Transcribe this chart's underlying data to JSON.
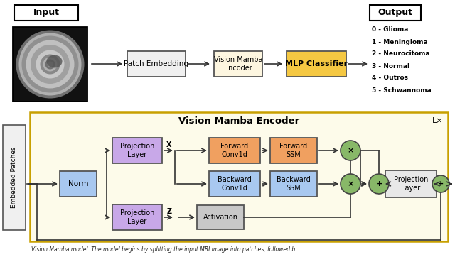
{
  "output_labels": [
    "0 - Glioma",
    "1 - Meningioma",
    "2 - Neurocitoma",
    "3 - Normal",
    "4 - Outros",
    "5 - Schwannoma"
  ],
  "encoder_title": "Vision Mamba Encoder",
  "encoder_lx": "L×",
  "embedded_patches_label": "Embedded Patches",
  "figure_bg": "#ffffff",
  "enc_bg": "#fdfbea",
  "enc_edge": "#c8a000",
  "proj_color": "#c8a8e8",
  "norm_color": "#a8c8f0",
  "fwd_color": "#f0a060",
  "bwd_color": "#a8c8f0",
  "act_color": "#c8c8c8",
  "proj_r_color": "#e8e8e8",
  "circle_color": "#88b868"
}
